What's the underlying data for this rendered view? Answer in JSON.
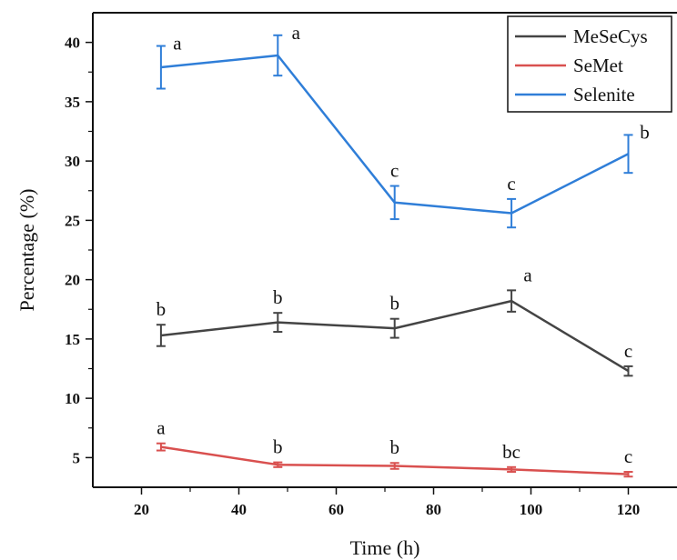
{
  "chart_data": {
    "type": "line",
    "title": "",
    "xlabel": "Time (h)",
    "ylabel": "Percentage (%)",
    "xlim": [
      10,
      130
    ],
    "ylim": [
      2.5,
      42.5
    ],
    "x_ticks": [
      "20",
      "40",
      "60",
      "80",
      "100",
      "120"
    ],
    "y_ticks": [
      "5",
      "10",
      "15",
      "20",
      "25",
      "30",
      "35",
      "40"
    ],
    "x": [
      24,
      48,
      72,
      96,
      120
    ],
    "grid": false,
    "legend_position": "top-right",
    "series": [
      {
        "name": "MeSeCys",
        "color": "#444444",
        "values": [
          15.3,
          16.4,
          15.9,
          18.2,
          12.3
        ],
        "errors": [
          0.9,
          0.8,
          0.8,
          0.9,
          0.4
        ],
        "letters": [
          "b",
          "b",
          "b",
          "a",
          "c"
        ]
      },
      {
        "name": "SeMet",
        "color": "#d9504f",
        "values": [
          5.9,
          4.4,
          4.3,
          4.0,
          3.6
        ],
        "errors": [
          0.3,
          0.2,
          0.25,
          0.2,
          0.2
        ],
        "letters": [
          "a",
          "b",
          "b",
          "bc",
          "c"
        ]
      },
      {
        "name": "Selenite",
        "color": "#2f7ed8",
        "values": [
          37.9,
          38.9,
          26.5,
          25.6,
          30.6
        ],
        "errors": [
          1.8,
          1.7,
          1.4,
          1.2,
          1.6
        ],
        "letters": [
          "a",
          "a",
          "c",
          "c",
          "b"
        ]
      }
    ]
  }
}
